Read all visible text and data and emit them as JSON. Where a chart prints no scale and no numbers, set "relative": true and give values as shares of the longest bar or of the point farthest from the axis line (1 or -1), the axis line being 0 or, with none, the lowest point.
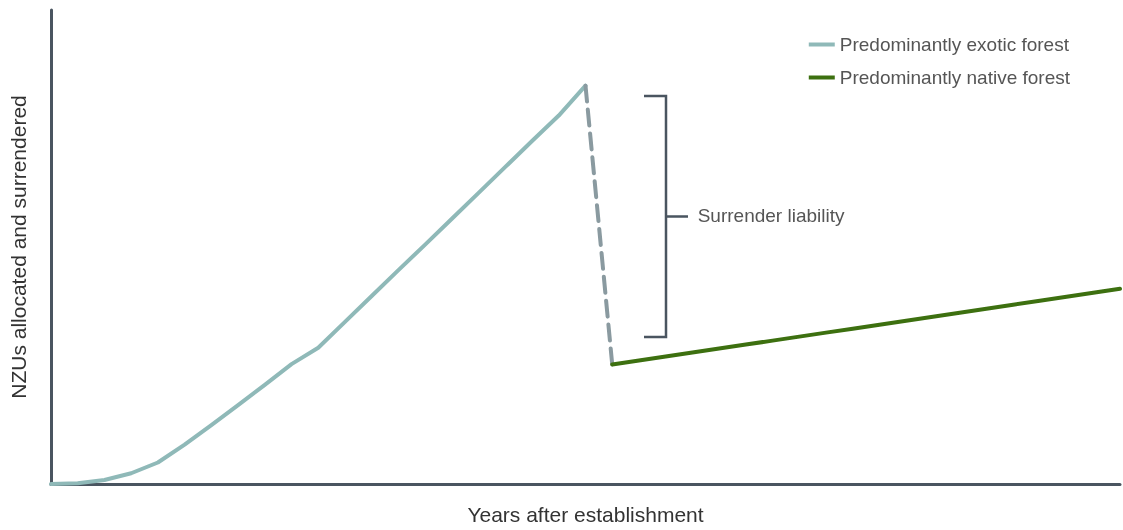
{
  "chart_data": {
    "type": "line",
    "relative": true,
    "xlabel": "Years after establishment",
    "ylabel": "NZUs allocated and surrendered",
    "categories": [
      null,
      null,
      null,
      null,
      null,
      null,
      null,
      null,
      null,
      null,
      null,
      null,
      null,
      null,
      null,
      null,
      null,
      null,
      null,
      null,
      null,
      null,
      null,
      null,
      null,
      null,
      null,
      null,
      null,
      null,
      null,
      null,
      null,
      null,
      null,
      null,
      null,
      null,
      null,
      null,
      null
    ],
    "series": [
      {
        "name": "Predominantly exotic forest",
        "color": "#8fb9b8",
        "values": [
          0,
          0.002,
          0.01,
          0.027,
          0.054,
          0.099,
          0.148,
          0.198,
          0.249,
          0.301,
          0.342,
          0.407,
          0.472,
          0.537,
          0.601,
          0.666,
          0.731,
          0.796,
          0.861,
          0.925,
          1,
          null,
          null,
          null,
          null,
          null,
          null,
          null,
          null,
          null,
          null,
          null,
          null,
          null,
          null,
          null,
          null,
          null,
          null,
          null,
          null
        ]
      },
      {
        "color": "#8a9aa0",
        "line_style": "dashed",
        "values": [
          null,
          null,
          null,
          null,
          null,
          null,
          null,
          null,
          null,
          null,
          null,
          null,
          null,
          null,
          null,
          null,
          null,
          null,
          null,
          null,
          1,
          0.3,
          null,
          null,
          null,
          null,
          null,
          null,
          null,
          null,
          null,
          null,
          null,
          null,
          null,
          null,
          null,
          null,
          null,
          null,
          null
        ]
      },
      {
        "name": "Predominantly native forest",
        "color": "#3d7010",
        "values": [
          null,
          null,
          null,
          null,
          null,
          null,
          null,
          null,
          null,
          null,
          null,
          null,
          null,
          null,
          null,
          null,
          null,
          null,
          null,
          null,
          null,
          0.3,
          0.31,
          0.32,
          0.33,
          0.34,
          0.35,
          0.36,
          0.37,
          0.38,
          0.39,
          0.4,
          0.41,
          0.42,
          0.43,
          0.44,
          0.45,
          0.46,
          0.47,
          0.48,
          0.49
        ]
      }
    ],
    "annotations": [
      "Surrender liability"
    ],
    "legend": "top right",
    "grid": false,
    "marker": "none",
    "line_style": "solid"
  }
}
